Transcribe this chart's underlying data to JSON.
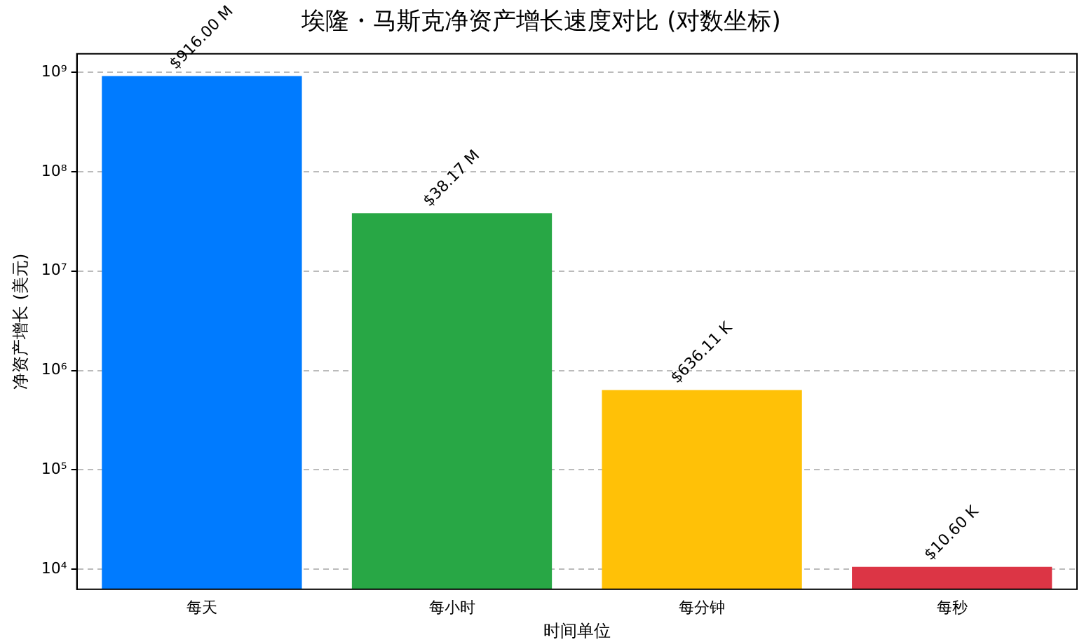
{
  "chart_data": {
    "type": "bar",
    "title": "埃隆・马斯克净资产增长速度对比 (对数坐标)",
    "xlabel": "时间单位",
    "ylabel": "净资产增长 (美元)",
    "categories": [
      "每天",
      "每小时",
      "每分钟",
      "每秒"
    ],
    "values": [
      916000000,
      38170000,
      636110,
      10600
    ],
    "colors": [
      "#007bff",
      "#28a745",
      "#ffc107",
      "#dc3545"
    ],
    "value_labels": [
      "$916.00 M",
      "$38.17 M",
      "$636.11 K",
      "$10.60 K"
    ],
    "log": "y",
    "ylim": [
      6300,
      1530000000
    ],
    "yticks": [
      {
        "value": 10000,
        "label": "10⁴"
      },
      {
        "value": 100000,
        "label": "10⁵"
      },
      {
        "value": 1000000,
        "label": "10⁶"
      },
      {
        "value": 10000000,
        "label": "10⁷"
      },
      {
        "value": 100000000,
        "label": "10⁸"
      },
      {
        "value": 1000000000,
        "label": "10⁹"
      }
    ],
    "grid": "y"
  }
}
